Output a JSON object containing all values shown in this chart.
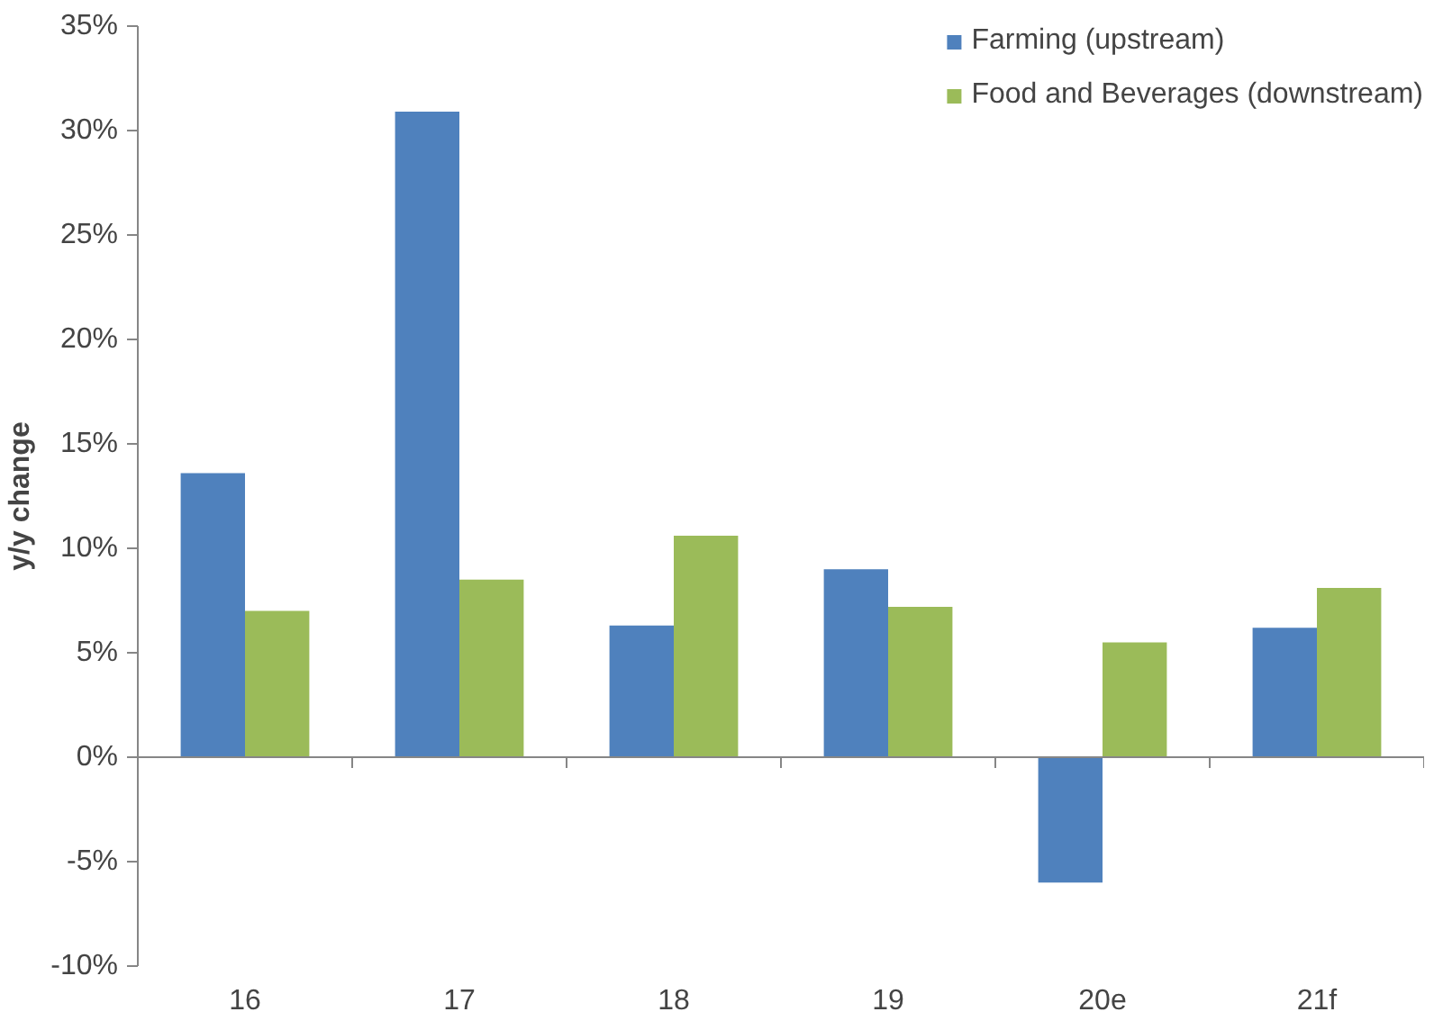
{
  "chart_data": {
    "type": "bar",
    "ylabel": "y/y change",
    "categories": [
      "16",
      "17",
      "18",
      "19",
      "20e",
      "21f"
    ],
    "series": [
      {
        "name": "Farming (upstream)",
        "color": "#4f81bd",
        "values": [
          13.6,
          30.9,
          6.3,
          9.0,
          -6.0,
          6.2
        ]
      },
      {
        "name": "Food and Beverages (downstream)",
        "color": "#9bbb59",
        "values": [
          7.0,
          8.5,
          10.6,
          7.2,
          5.5,
          8.1
        ]
      }
    ],
    "ylim": [
      -10,
      35
    ],
    "yticks": [
      {
        "value": -10,
        "label": "-10%"
      },
      {
        "value": -5,
        "label": "-5%"
      },
      {
        "value": 0,
        "label": "0%"
      },
      {
        "value": 5,
        "label": "5%"
      },
      {
        "value": 10,
        "label": "10%"
      },
      {
        "value": 15,
        "label": "15%"
      },
      {
        "value": 20,
        "label": "20%"
      },
      {
        "value": 25,
        "label": "25%"
      },
      {
        "value": 30,
        "label": "30%"
      },
      {
        "value": 35,
        "label": "35%"
      }
    ],
    "legend": "top right"
  }
}
